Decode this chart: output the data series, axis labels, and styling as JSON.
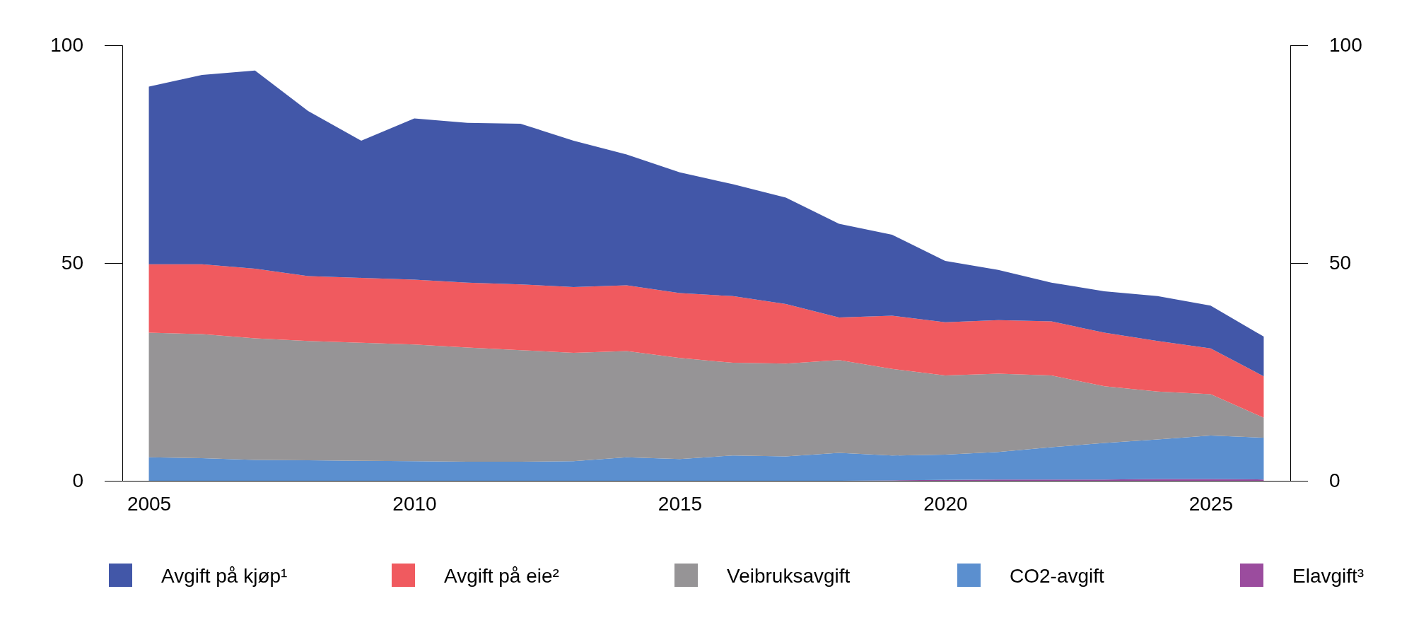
{
  "chart_data": {
    "type": "area",
    "stacked": true,
    "x": [
      2005,
      2006,
      2007,
      2008,
      2009,
      2010,
      2011,
      2012,
      2013,
      2014,
      2015,
      2016,
      2017,
      2018,
      2019,
      2020,
      2021,
      2022,
      2023,
      2024,
      2025,
      2026
    ],
    "xlim": [
      2004.5,
      2026.5
    ],
    "xticks": [
      2005,
      2010,
      2015,
      2020,
      2025
    ],
    "ylim": [
      0,
      100
    ],
    "yticks": [
      0,
      50,
      100
    ],
    "y2lim": [
      0,
      100
    ],
    "y2ticks": [
      0,
      50,
      100
    ],
    "grid": false,
    "legend": "bottom",
    "series": [
      {
        "name": "Elavgift³",
        "color": "#9b4c9e",
        "values": [
          0,
          0,
          0,
          0,
          0,
          0,
          0,
          0,
          0,
          0,
          0,
          0,
          0,
          0,
          0.1,
          0.2,
          0.3,
          0.3,
          0.3,
          0.4,
          0.4,
          0.3
        ]
      },
      {
        "name": "CO2-avgift",
        "color": "#5b8fcf",
        "values": [
          5.4,
          5.2,
          4.8,
          4.7,
          4.6,
          4.5,
          4.4,
          4.4,
          4.5,
          5.4,
          5.0,
          5.8,
          5.6,
          6.4,
          5.7,
          5.8,
          6.3,
          7.4,
          8.4,
          9.1,
          10.0,
          9.6
        ]
      },
      {
        "name": "Veibruksavgift",
        "color": "#969496",
        "values": [
          28.6,
          28.5,
          27.9,
          27.4,
          27.1,
          26.8,
          26.2,
          25.6,
          24.9,
          24.4,
          23.2,
          21.3,
          21.3,
          21.3,
          19.9,
          18.2,
          18.0,
          16.5,
          13.0,
          11.0,
          9.5,
          4.6
        ]
      },
      {
        "name": "Avgift på eie²",
        "color": "#f05a5f",
        "values": [
          15.7,
          16.0,
          16.0,
          14.9,
          14.9,
          14.9,
          14.9,
          15.1,
          15.1,
          15.1,
          14.9,
          15.3,
          13.7,
          9.8,
          12.2,
          12.2,
          12.3,
          12.4,
          12.3,
          11.6,
          10.5,
          9.5
        ]
      },
      {
        "name": "Avgift på kjøp¹",
        "color": "#4257a8",
        "values": [
          40.8,
          43.5,
          45.5,
          37.9,
          31.5,
          37.0,
          36.7,
          36.9,
          33.6,
          30.0,
          27.7,
          25.7,
          24.4,
          21.5,
          18.6,
          14.1,
          11.5,
          8.9,
          9.5,
          10.3,
          9.8,
          9.1
        ]
      }
    ]
  }
}
